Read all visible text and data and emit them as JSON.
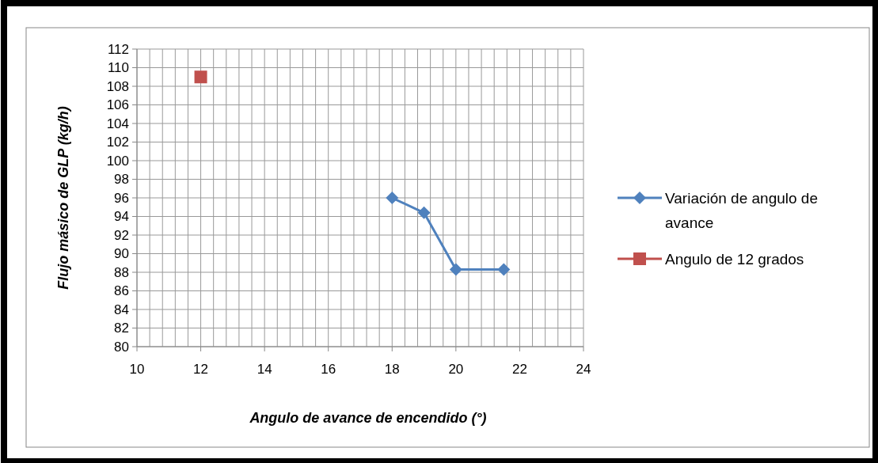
{
  "chart_data": {
    "type": "line",
    "xlabel": "Angulo de avance de encendido (°)",
    "ylabel": "Flujo másico de GLP (kg/h)",
    "xlim": [
      10,
      24
    ],
    "ylim": [
      80,
      112
    ],
    "xticks": [
      10,
      {
        "value": 10.4,
        "label": null
      },
      {
        "value": 10.8,
        "label": null
      },
      {
        "value": 11.2,
        "label": null
      },
      {
        "value": 11.6,
        "label": null
      },
      12,
      {
        "value": 12.4,
        "label": null
      },
      {
        "value": 12.8,
        "label": null
      },
      {
        "value": 13.2,
        "label": null
      },
      {
        "value": 13.6,
        "label": null
      },
      14,
      {
        "value": 14.4,
        "label": null
      },
      {
        "value": 14.8,
        "label": null
      },
      {
        "value": 15.2,
        "label": null
      },
      {
        "value": 15.6,
        "label": null
      },
      16,
      {
        "value": 16.4,
        "label": null
      },
      {
        "value": 16.8,
        "label": null
      },
      {
        "value": 17.2,
        "label": null
      },
      {
        "value": 17.6,
        "label": null
      },
      18,
      {
        "value": 18.4,
        "label": null
      },
      {
        "value": 18.8,
        "label": null
      },
      {
        "value": 19.2,
        "label": null
      },
      {
        "value": 19.6,
        "label": null
      },
      20,
      {
        "value": 20.4,
        "label": null
      },
      {
        "value": 20.8,
        "label": null
      },
      {
        "value": 21.2,
        "label": null
      },
      {
        "value": 21.6,
        "label": null
      },
      22,
      {
        "value": 22.4,
        "label": null
      },
      {
        "value": 22.8,
        "label": null
      },
      {
        "value": 23.2,
        "label": null
      },
      {
        "value": 23.6,
        "label": null
      },
      24
    ],
    "yticks": [
      80,
      82,
      84,
      86,
      88,
      90,
      92,
      94,
      96,
      98,
      100,
      102,
      104,
      106,
      108,
      110,
      112
    ],
    "grid": true,
    "legend": "right",
    "series": [
      {
        "name": "Variación de angulo de avance",
        "marker": "diamond",
        "color": "#4f81bd",
        "x": [
          18,
          19,
          20,
          21.5
        ],
        "values": [
          96,
          94.4,
          88.3,
          88.3
        ]
      },
      {
        "name": "Angulo de 12 grados",
        "type": "scatter",
        "marker": "square",
        "color": "#c0504d",
        "x": [
          12
        ],
        "values": [
          109
        ]
      }
    ]
  }
}
